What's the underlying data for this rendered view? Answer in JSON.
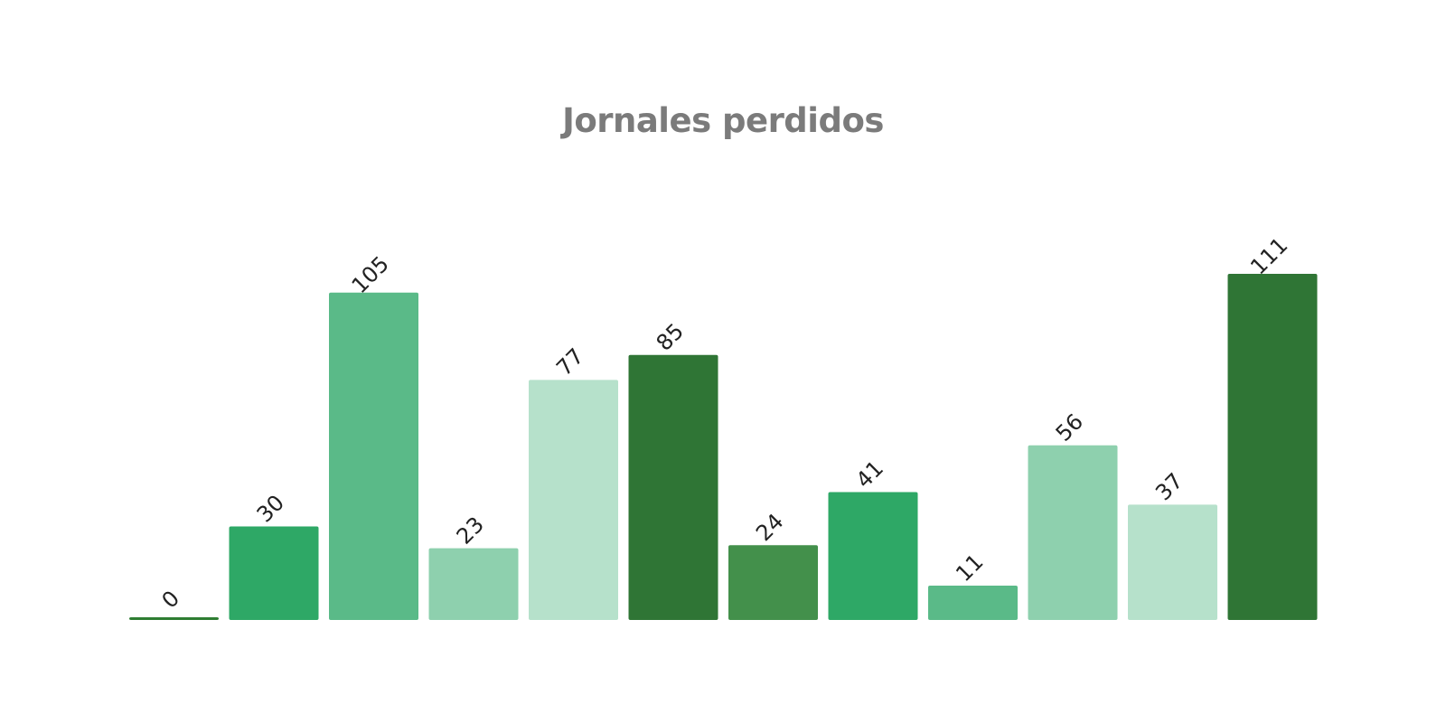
{
  "chart_data": {
    "type": "bar",
    "title": "Jornales perdidos",
    "xlabel": "",
    "ylabel": "",
    "values": [
      0,
      30,
      105,
      23,
      77,
      85,
      24,
      41,
      11,
      56,
      37,
      111
    ],
    "colors": [
      "#2e7d32",
      "#2ea866",
      "#5aba88",
      "#8ed0ae",
      "#b6e1cb",
      "#2f7535",
      "#43904b",
      "#2ea866",
      "#5aba88",
      "#8ed0ae",
      "#b6e1cb",
      "#2f7535"
    ],
    "data_labels": [
      "0",
      "30",
      "105",
      "23",
      "77",
      "85",
      "24",
      "41",
      "11",
      "56",
      "37",
      "111"
    ],
    "grid": false,
    "legend": "none"
  }
}
